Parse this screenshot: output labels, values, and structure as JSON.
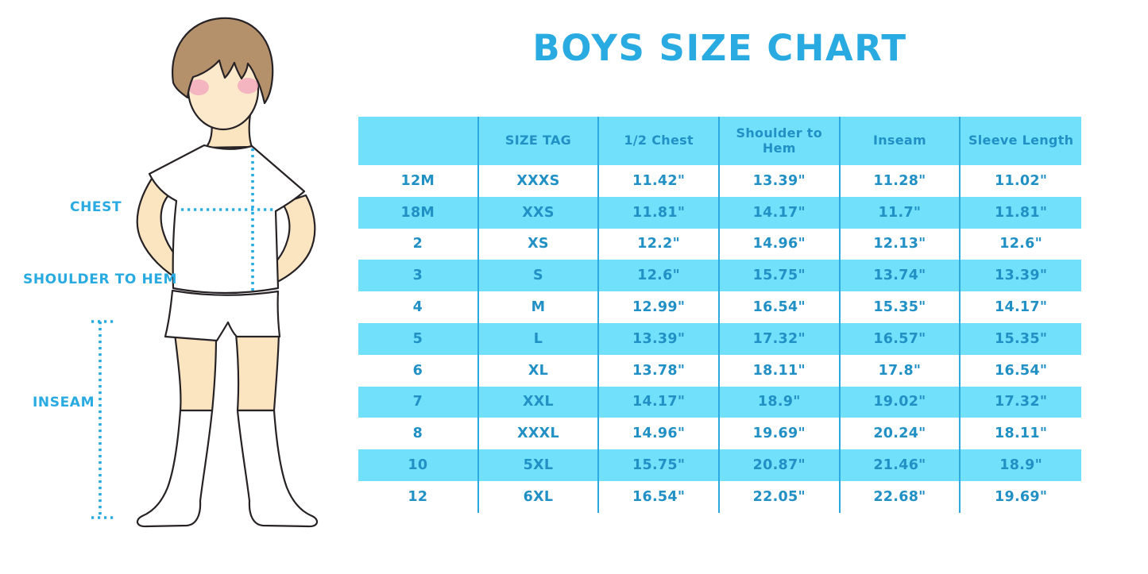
{
  "title": "BOYS SIZE CHART",
  "diagram": {
    "chest_label": "CHEST",
    "shoulder_label": "SHOULDER TO HEM",
    "inseam_label": "INSEAM"
  },
  "chart_data": {
    "type": "table",
    "title": "BOYS SIZE CHART",
    "columns": [
      "",
      "SIZE TAG",
      "1/2 Chest",
      "Shoulder to Hem",
      "Inseam",
      "Sleeve Length"
    ],
    "rows": [
      [
        "12M",
        "XXXS",
        "11.42\"",
        "13.39\"",
        "11.28\"",
        "11.02\""
      ],
      [
        "18M",
        "XXS",
        "11.81\"",
        "14.17\"",
        "11.7\"",
        "11.81\""
      ],
      [
        "2",
        "XS",
        "12.2\"",
        "14.96\"",
        "12.13\"",
        "12.6\""
      ],
      [
        "3",
        "S",
        "12.6\"",
        "15.75\"",
        "13.74\"",
        "13.39\""
      ],
      [
        "4",
        "M",
        "12.99\"",
        "16.54\"",
        "15.35\"",
        "14.17\""
      ],
      [
        "5",
        "L",
        "13.39\"",
        "17.32\"",
        "16.57\"",
        "15.35\""
      ],
      [
        "6",
        "XL",
        "13.78\"",
        "18.11\"",
        "17.8\"",
        "16.54\""
      ],
      [
        "7",
        "XXL",
        "14.17\"",
        "18.9\"",
        "19.02\"",
        "17.32\""
      ],
      [
        "8",
        "XXXL",
        "14.96\"",
        "19.69\"",
        "20.24\"",
        "18.11\""
      ],
      [
        "10",
        "5XL",
        "15.75\"",
        "20.87\"",
        "21.46\"",
        "18.9\""
      ],
      [
        "12",
        "6XL",
        "16.54\"",
        "22.05\"",
        "22.68\"",
        "19.69\""
      ]
    ],
    "layout": {
      "striping": "alternating rows white / cyan, header cyan",
      "grid": "vertical dividers only"
    }
  },
  "colors": {
    "accent": "#29ABE2",
    "table_fill": "#71E1FB",
    "table_text": "#2190C5",
    "divider": "#2BA9E0",
    "skin": "#FBE5C0",
    "face_skin": "#FCE9CC",
    "hair": "#B5916B",
    "blush": "#F1A6BD",
    "outline": "#262225",
    "dotted_line": "#29ABE2"
  }
}
